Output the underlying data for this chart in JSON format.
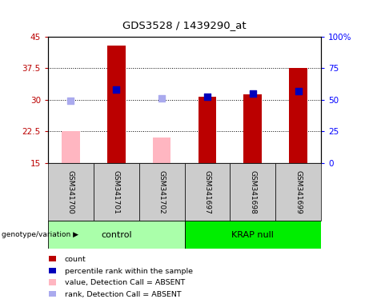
{
  "title": "GDS3528 / 1439290_at",
  "samples": [
    "GSM341700",
    "GSM341701",
    "GSM341702",
    "GSM341697",
    "GSM341698",
    "GSM341699"
  ],
  "red_bars": [
    null,
    43.0,
    null,
    30.8,
    31.3,
    37.5
  ],
  "pink_bars": [
    22.5,
    null,
    21.0,
    null,
    null,
    null
  ],
  "blue_dots_left": [
    null,
    32.5,
    null,
    30.7,
    31.5,
    32.0
  ],
  "light_blue_dots_left": [
    29.8,
    null,
    30.3,
    null,
    null,
    null
  ],
  "ylim_left": [
    15,
    45
  ],
  "ylim_right": [
    0,
    100
  ],
  "yticks_left": [
    15,
    22.5,
    30,
    37.5,
    45
  ],
  "yticks_right": [
    0,
    25,
    50,
    75,
    100
  ],
  "ytick_labels_left": [
    "15",
    "22.5",
    "30",
    "37.5",
    "45"
  ],
  "ytick_labels_right": [
    "0",
    "25",
    "50",
    "75",
    "100%"
  ],
  "red_color": "#BB0000",
  "pink_color": "#FFB6C1",
  "blue_color": "#0000BB",
  "light_blue_color": "#AAAAEE",
  "bar_width": 0.4,
  "dot_size": 40,
  "control_color": "#AAFFAA",
  "krap_color": "#00EE00",
  "sample_box_color": "#CCCCCC",
  "legend_items": [
    {
      "color": "#BB0000",
      "label": "count"
    },
    {
      "color": "#0000BB",
      "label": "percentile rank within the sample"
    },
    {
      "color": "#FFB6C1",
      "label": "value, Detection Call = ABSENT"
    },
    {
      "color": "#AAAAEE",
      "label": "rank, Detection Call = ABSENT"
    }
  ]
}
